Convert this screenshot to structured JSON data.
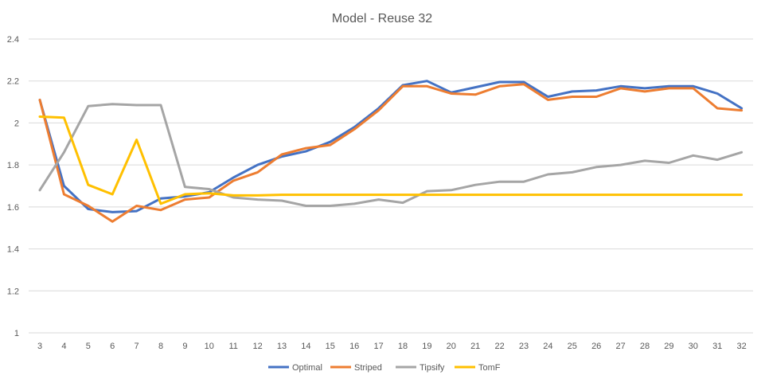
{
  "chart_data": {
    "type": "line",
    "title": "Model - Reuse 32",
    "xlabel": "",
    "ylabel": "",
    "ylim": [
      1,
      2.4
    ],
    "yticks": [
      "1",
      "1.2",
      "1.4",
      "1.6",
      "1.8",
      "2",
      "2.2",
      "2.4"
    ],
    "grid": true,
    "legend_position": "bottom",
    "categories": [
      "3",
      "4",
      "5",
      "6",
      "7",
      "8",
      "9",
      "10",
      "11",
      "12",
      "13",
      "14",
      "15",
      "16",
      "17",
      "18",
      "19",
      "20",
      "21",
      "22",
      "23",
      "24",
      "25",
      "26",
      "27",
      "28",
      "29",
      "30",
      "31",
      "32"
    ],
    "series": [
      {
        "name": "Optimal",
        "color": "#4472c4",
        "values": [
          2.11,
          1.7,
          1.59,
          1.575,
          1.58,
          1.64,
          1.65,
          1.67,
          1.74,
          1.8,
          1.84,
          1.865,
          1.91,
          1.98,
          2.07,
          2.18,
          2.2,
          2.145,
          2.17,
          2.195,
          2.195,
          2.125,
          2.15,
          2.155,
          2.175,
          2.165,
          2.175,
          2.175,
          2.14,
          2.07
        ]
      },
      {
        "name": "Striped",
        "color": "#ed7d31",
        "values": [
          2.11,
          1.66,
          1.605,
          1.53,
          1.605,
          1.585,
          1.635,
          1.645,
          1.725,
          1.765,
          1.85,
          1.88,
          1.895,
          1.97,
          2.06,
          2.175,
          2.175,
          2.14,
          2.135,
          2.175,
          2.185,
          2.11,
          2.125,
          2.125,
          2.165,
          2.15,
          2.165,
          2.165,
          2.07,
          2.06
        ]
      },
      {
        "name": "Tipsify",
        "color": "#a5a5a5",
        "values": [
          1.68,
          1.86,
          2.08,
          2.09,
          2.085,
          2.085,
          1.695,
          1.685,
          1.645,
          1.635,
          1.63,
          1.605,
          1.605,
          1.615,
          1.635,
          1.62,
          1.675,
          1.68,
          1.705,
          1.72,
          1.72,
          1.755,
          1.765,
          1.79,
          1.8,
          1.82,
          1.81,
          1.845,
          1.825,
          1.86
        ]
      },
      {
        "name": "TomF",
        "color": "#ffc000",
        "values": [
          2.03,
          2.025,
          1.705,
          1.66,
          1.92,
          1.615,
          1.66,
          1.665,
          1.655,
          1.655,
          1.658,
          1.658,
          1.658,
          1.658,
          1.658,
          1.658,
          1.658,
          1.658,
          1.658,
          1.658,
          1.658,
          1.658,
          1.658,
          1.658,
          1.658,
          1.658,
          1.658,
          1.658,
          1.658,
          1.658
        ]
      }
    ]
  }
}
